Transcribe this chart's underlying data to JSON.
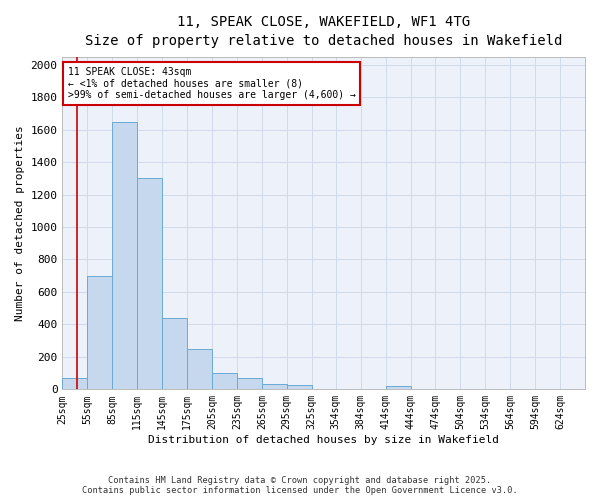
{
  "title": "11, SPEAK CLOSE, WAKEFIELD, WF1 4TG",
  "subtitle": "Size of property relative to detached houses in Wakefield",
  "xlabel": "Distribution of detached houses by size in Wakefield",
  "ylabel": "Number of detached properties",
  "bar_labels": [
    "25sqm",
    "55sqm",
    "85sqm",
    "115sqm",
    "145sqm",
    "175sqm",
    "205sqm",
    "235sqm",
    "265sqm",
    "295sqm",
    "325sqm",
    "354sqm",
    "384sqm",
    "414sqm",
    "444sqm",
    "474sqm",
    "504sqm",
    "534sqm",
    "564sqm",
    "594sqm",
    "624sqm"
  ],
  "bar_values": [
    70,
    700,
    1650,
    1300,
    440,
    250,
    100,
    70,
    30,
    25,
    0,
    0,
    0,
    20,
    0,
    0,
    0,
    0,
    0,
    0,
    0
  ],
  "bar_color": "#c5d8ee",
  "bar_edge_color": "#6aaad4",
  "red_line_x": 43,
  "ylim": [
    0,
    2050
  ],
  "yticks": [
    0,
    200,
    400,
    600,
    800,
    1000,
    1200,
    1400,
    1600,
    1800,
    2000
  ],
  "annotation_line1": "11 SPEAK CLOSE: 43sqm",
  "annotation_line2": "← <1% of detached houses are smaller (8)",
  "annotation_line3": ">99% of semi-detached houses are larger (4,600) →",
  "annotation_box_color": "#ffffff",
  "annotation_box_edge": "#cc0000",
  "grid_color": "#d0daea",
  "background_color": "#edf1f9",
  "footer_line1": "Contains HM Land Registry data © Crown copyright and database right 2025.",
  "footer_line2": "Contains public sector information licensed under the Open Government Licence v3.0.",
  "bin_starts": [
    25,
    55,
    85,
    115,
    145,
    175,
    205,
    235,
    265,
    295,
    325,
    354,
    384,
    414,
    444,
    474,
    504,
    534,
    564,
    594,
    624
  ],
  "bin_width": 30
}
